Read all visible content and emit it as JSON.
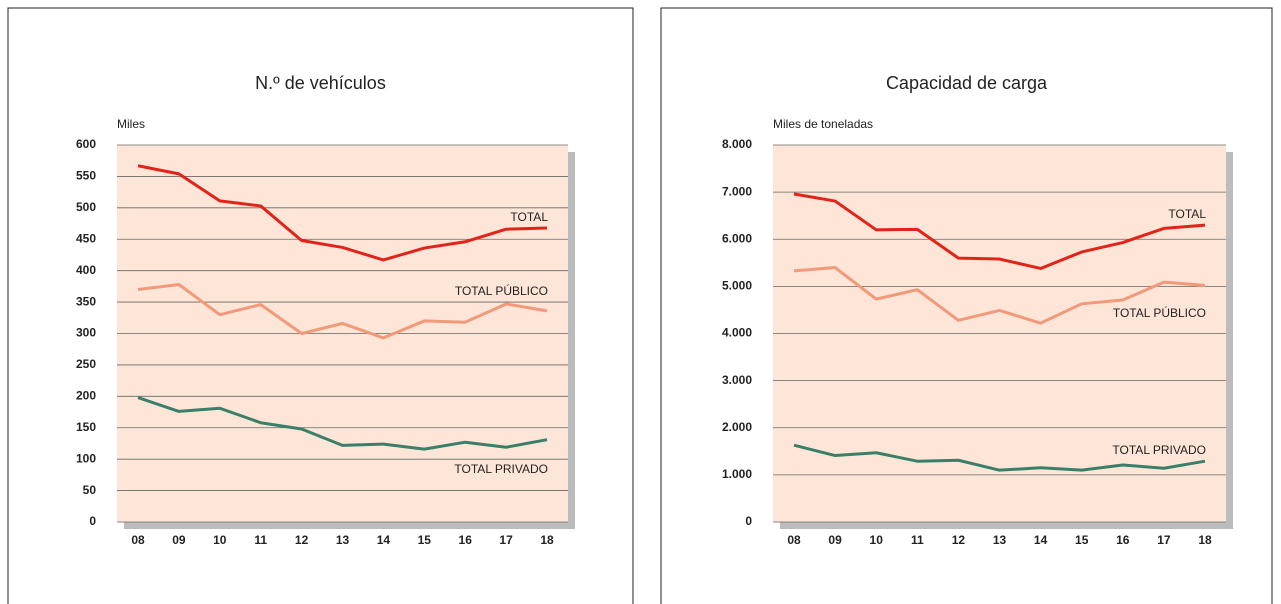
{
  "chart_data": [
    {
      "type": "line",
      "title": "N.º de vehículos",
      "ylabel": "Miles",
      "categories": [
        "08",
        "09",
        "10",
        "11",
        "12",
        "13",
        "14",
        "15",
        "16",
        "17",
        "18"
      ],
      "series": [
        {
          "name": "TOTAL",
          "color": "#e2231a",
          "values": [
            567,
            554,
            511,
            503,
            448,
            437,
            417,
            436,
            446,
            466,
            468
          ]
        },
        {
          "name": "TOTAL PÚBLICO",
          "color": "#f2997a",
          "values": [
            370,
            378,
            330,
            346,
            300,
            316,
            293,
            320,
            318,
            347,
            336
          ]
        },
        {
          "name": "TOTAL PRIVADO",
          "color": "#3a7f6a",
          "values": [
            198,
            176,
            181,
            158,
            148,
            122,
            124,
            116,
            127,
            119,
            131
          ]
        }
      ],
      "ylim": [
        0,
        600
      ],
      "yticks": [
        0,
        50,
        100,
        150,
        200,
        250,
        300,
        350,
        400,
        450,
        500,
        550,
        600
      ],
      "grid": true
    },
    {
      "type": "line",
      "title": "Capacidad de carga",
      "ylabel": "Miles de toneladas",
      "categories": [
        "08",
        "09",
        "10",
        "11",
        "12",
        "13",
        "14",
        "15",
        "16",
        "17",
        "18"
      ],
      "series": [
        {
          "name": "TOTAL",
          "color": "#e2231a",
          "values": [
            6960,
            6810,
            6200,
            6210,
            5600,
            5580,
            5380,
            5730,
            5930,
            6230,
            6300
          ]
        },
        {
          "name": "TOTAL PÚBLICO",
          "color": "#f2997a",
          "values": [
            5330,
            5400,
            4730,
            4930,
            4280,
            4490,
            4220,
            4630,
            4710,
            5090,
            5020
          ]
        },
        {
          "name": "TOTAL PRIVADO",
          "color": "#3a7f6a",
          "values": [
            1630,
            1410,
            1470,
            1290,
            1310,
            1100,
            1150,
            1100,
            1210,
            1140,
            1290
          ]
        }
      ],
      "ylim": [
        0,
        8000
      ],
      "yticks": [
        0,
        {
          "value": 1000,
          "label": "1.000"
        },
        {
          "value": 2000,
          "label": "2.000"
        },
        {
          "value": 3000,
          "label": "3.000"
        },
        {
          "value": 4000,
          "label": "4.000"
        },
        {
          "value": 5000,
          "label": "5.000"
        },
        {
          "value": 6000,
          "label": "6.000"
        },
        {
          "value": 7000,
          "label": "7.000"
        },
        {
          "value": 8000,
          "label": "8.000"
        }
      ],
      "grid": true
    }
  ]
}
